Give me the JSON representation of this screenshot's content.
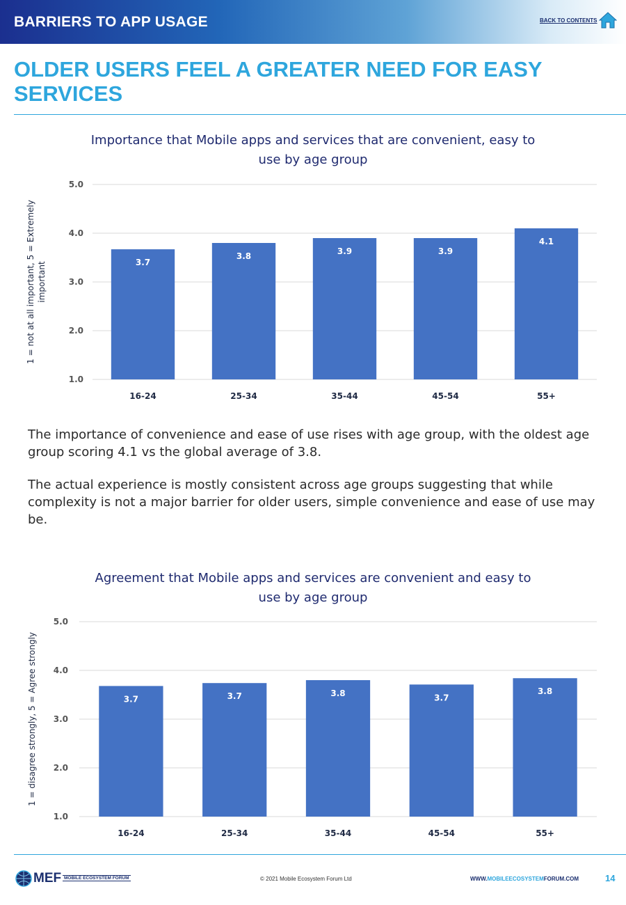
{
  "header": {
    "section_title": "BARRIERS TO APP USAGE",
    "back_link": "BACK TO CONTENTS",
    "home_icon": "home-icon",
    "band_colors": [
      "#1b2f8f",
      "#5fa3d6",
      "#ffffff"
    ]
  },
  "page": {
    "heading": "OLDER USERS FEEL A GREATER NEED FOR EASY SERVICES",
    "accent_color": "#2ea6dd"
  },
  "chart_data": [
    {
      "type": "bar",
      "title": "Importance that Mobile apps and services that are convenient, easy to use by age group",
      "title_lines": [
        "Importance that Mobile apps and services that are convenient, easy to",
        "use by age group"
      ],
      "xlabel": "",
      "ylabel": "1 = not at all important, 5 = Extremely important",
      "ylabel_lines": [
        "1 = not at all important, 5 = Extremely",
        "important"
      ],
      "categories": [
        "16-24",
        "25-34",
        "35-44",
        "45-54",
        "55+"
      ],
      "values": [
        3.67,
        3.8,
        3.9,
        3.9,
        4.1
      ],
      "data_labels": [
        "3.7",
        "3.8",
        "3.9",
        "3.9",
        "4.1"
      ],
      "ylim": [
        1.0,
        5.0
      ],
      "yticks": [
        "1.0",
        "2.0",
        "3.0",
        "4.0",
        "5.0"
      ],
      "grid": true,
      "bar_color": "#4472c4"
    },
    {
      "type": "bar",
      "title": "Agreement that Mobile apps and services are convenient and easy to use by age group",
      "title_lines": [
        "Agreement that Mobile apps and services are convenient and easy to",
        "use by age group"
      ],
      "xlabel": "",
      "ylabel": "1 = disagree strongly, 5 = Agree strongly",
      "ylabel_lines": [
        "1 = disagree strongly, 5 = Agree strongly"
      ],
      "categories": [
        "16-24",
        "25-34",
        "35-44",
        "45-54",
        "55+"
      ],
      "values": [
        3.68,
        3.74,
        3.8,
        3.71,
        3.84
      ],
      "data_labels": [
        "3.7",
        "3.7",
        "3.8",
        "3.7",
        "3.8"
      ],
      "ylim": [
        1.0,
        5.0
      ],
      "yticks": [
        "1.0",
        "2.0",
        "3.0",
        "4.0",
        "5.0"
      ],
      "grid": true,
      "bar_color": "#4472c4"
    }
  ],
  "body": {
    "paragraph1": "The importance of convenience and ease of use rises with age group, with the oldest age group scoring 4.1 vs the global average of 3.8.",
    "paragraph2": "The actual experience is mostly consistent across age groups suggesting that while complexity is not a major barrier for older users, simple convenience and ease of use may be."
  },
  "footer": {
    "logo_text": "MEF",
    "logo_full": "MOBILE ECOSYSTEM FORUM",
    "copyright": "© 2021 Mobile Ecosystem Forum Ltd",
    "url_prefix": "WWW.",
    "url_highlight": "MOBILEECOSYSTEM",
    "url_rest": "FORUM.COM",
    "page_number": "14"
  }
}
